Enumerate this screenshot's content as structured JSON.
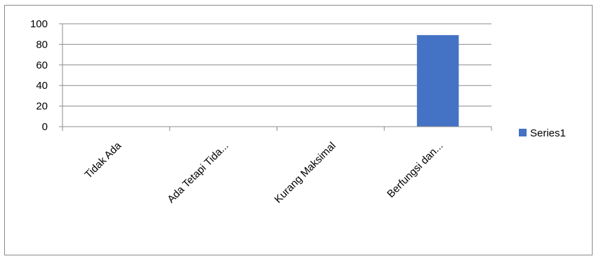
{
  "chart_data": {
    "type": "bar",
    "categories": [
      "Tidak Ada",
      "Ada Tetapi Tida...",
      "Kurang Maksimal",
      "Berfungsi dan..."
    ],
    "series": [
      {
        "name": "Series1",
        "values": [
          0,
          0,
          0,
          89
        ],
        "color": "#4472C4"
      }
    ],
    "ylim": [
      0,
      100
    ],
    "yticks": [
      0,
      20,
      40,
      60,
      80,
      100
    ],
    "grid": true,
    "legend": "right",
    "title": "",
    "xlabel": "",
    "ylabel": ""
  }
}
